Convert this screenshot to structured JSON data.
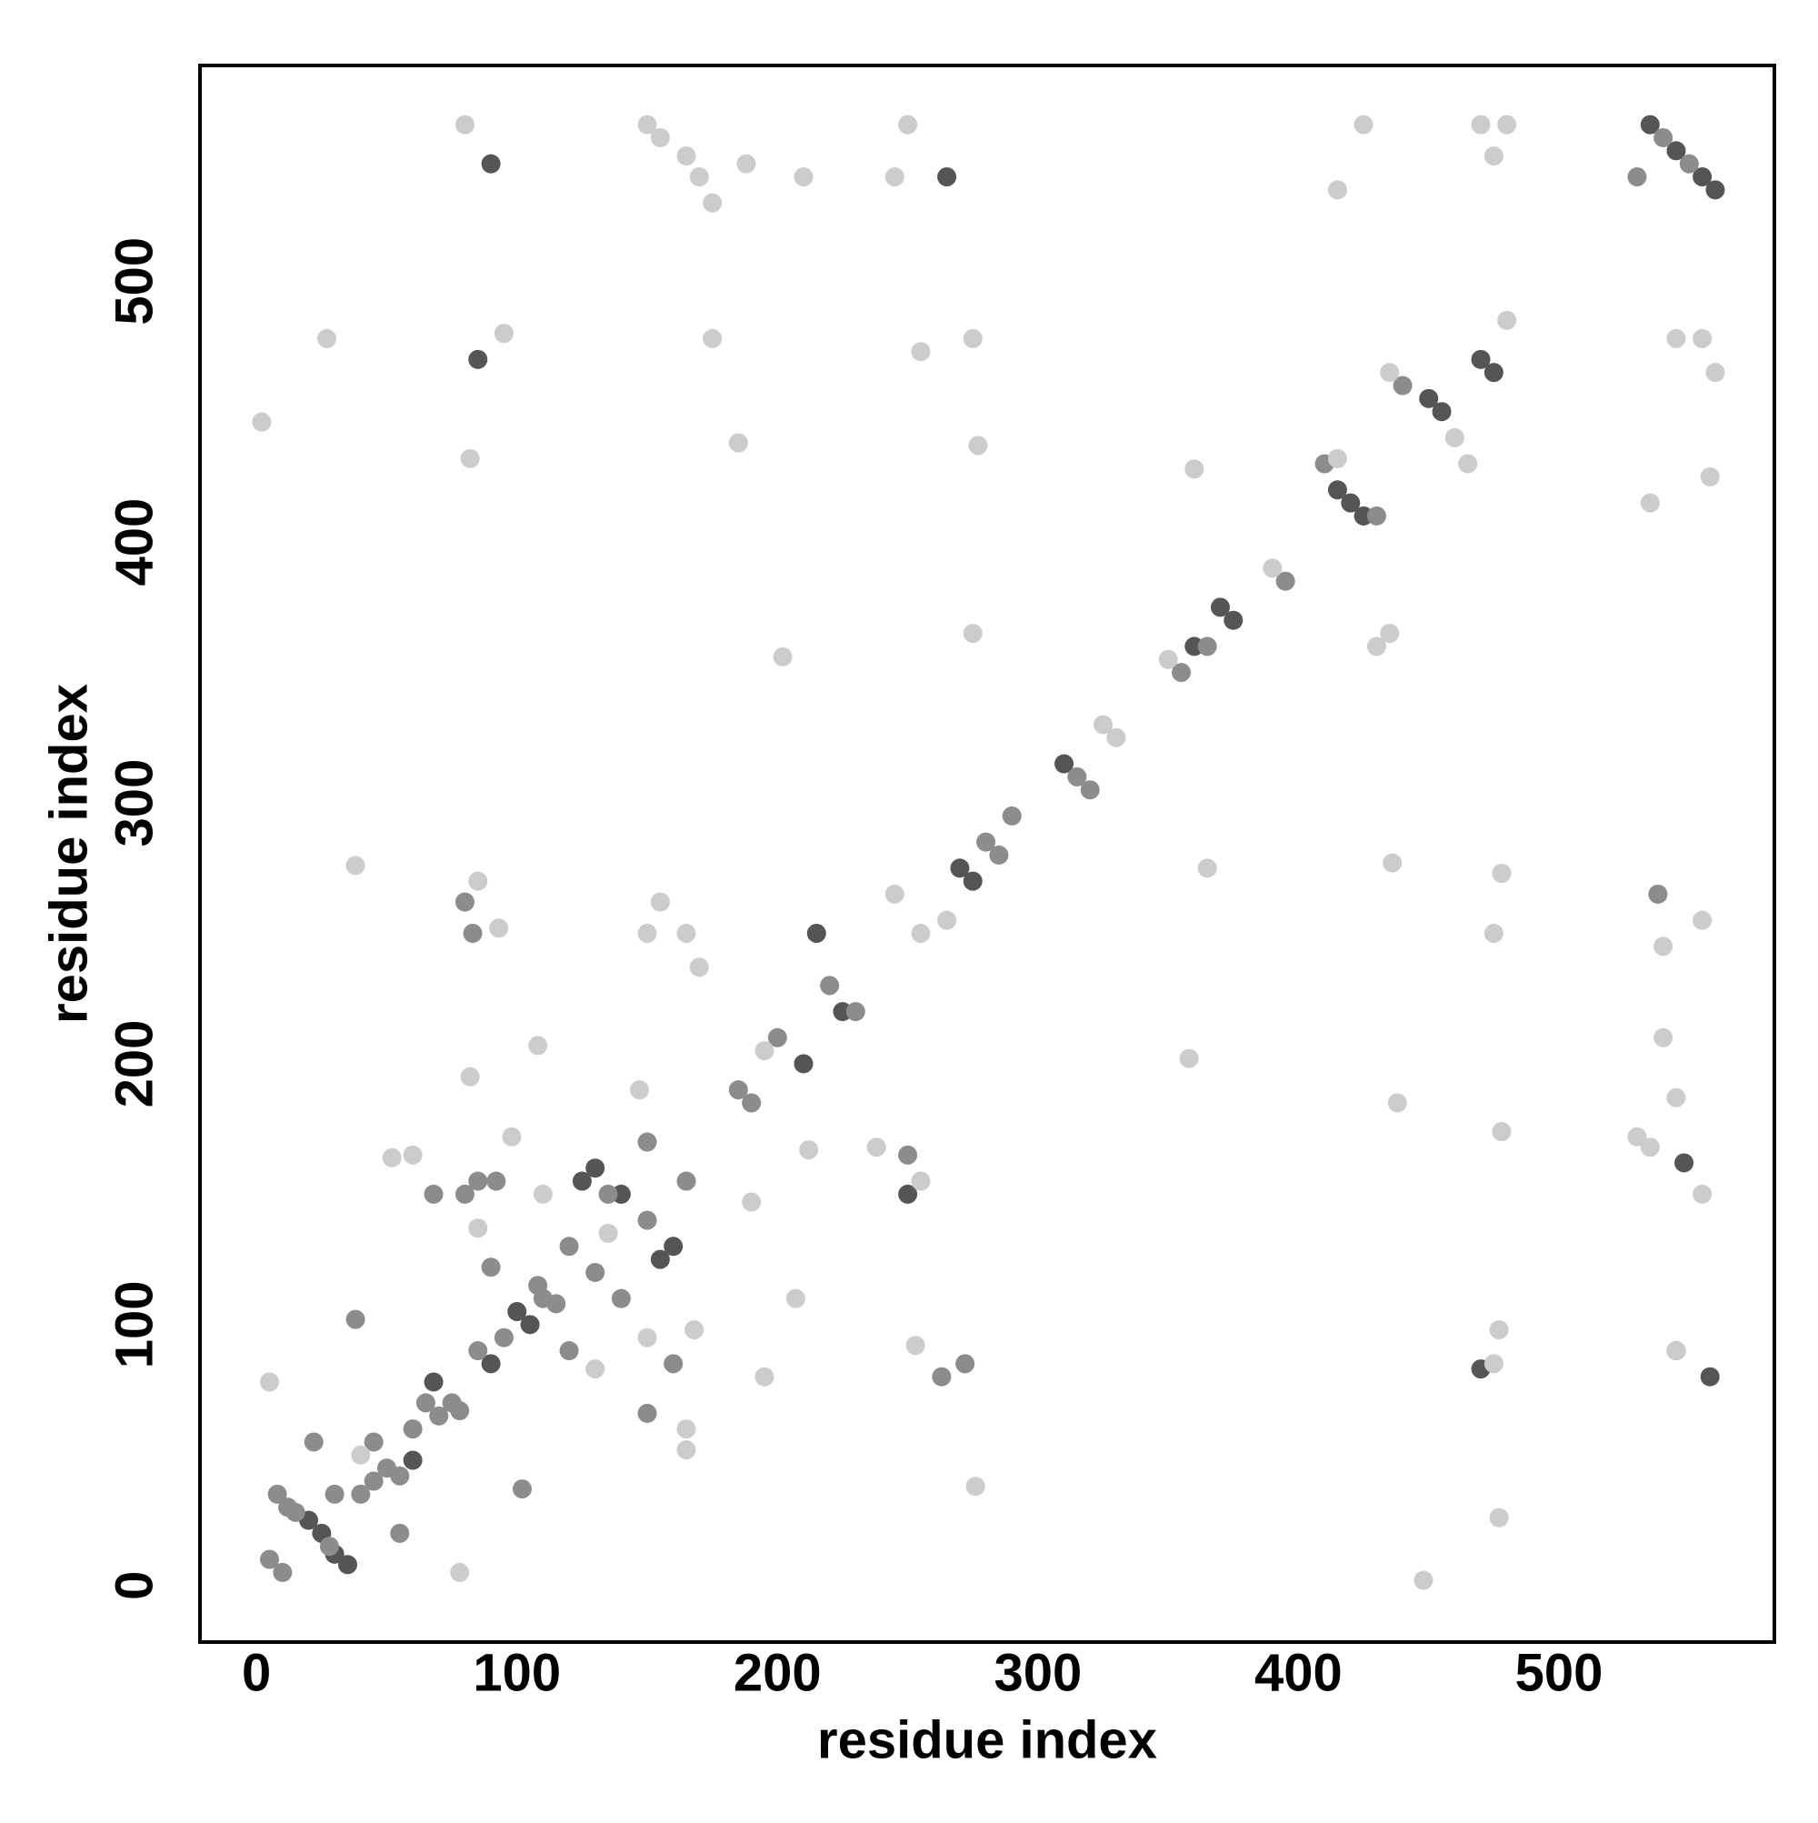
{
  "chart_data": {
    "type": "scatter",
    "xlabel": "residue index",
    "ylabel": "residue index",
    "xlim": [
      -21,
      582
    ],
    "ylim": [
      -21,
      582
    ],
    "xticks": [
      0,
      100,
      200,
      300,
      400,
      500
    ],
    "yticks": [
      0,
      100,
      200,
      300,
      400,
      500
    ],
    "grid": false,
    "series": [
      {
        "color": "#555555",
        "x": [
          20,
          25,
          30,
          35,
          60,
          68,
          90,
          100,
          105,
          125,
          130,
          140,
          155,
          160,
          210,
          215,
          225,
          270,
          275,
          310,
          360,
          370,
          375,
          415,
          420,
          425,
          450,
          455,
          470,
          475,
          535,
          545,
          555,
          560,
          85,
          90,
          265,
          470,
          545,
          548,
          558,
          250
        ],
        "values": [
          25,
          20,
          12,
          8,
          48,
          78,
          85,
          105,
          100,
          155,
          160,
          150,
          125,
          130,
          200,
          250,
          220,
          275,
          270,
          315,
          360,
          375,
          370,
          420,
          415,
          410,
          455,
          450,
          470,
          465,
          560,
          550,
          540,
          535,
          470,
          545,
          540,
          83,
          90,
          162,
          80,
          150
        ]
      },
      {
        "color": "#8c8c8c",
        "x": [
          5,
          10,
          8,
          12,
          15,
          28,
          30,
          40,
          45,
          50,
          55,
          45,
          60,
          65,
          70,
          75,
          78,
          85,
          95,
          110,
          115,
          108,
          120,
          130,
          135,
          150,
          150,
          165,
          185,
          190,
          200,
          220,
          230,
          280,
          285,
          290,
          315,
          320,
          355,
          365,
          395,
          410,
          430,
          440,
          540,
          550,
          38,
          80,
          83,
          150,
          160,
          250,
          263,
          272,
          22,
          55,
          102,
          68,
          80,
          85,
          92,
          90,
          120,
          140,
          538,
          530
        ],
        "values": [
          10,
          5,
          35,
          30,
          28,
          15,
          35,
          35,
          40,
          45,
          42,
          55,
          60,
          70,
          65,
          70,
          67,
          90,
          95,
          110,
          108,
          115,
          130,
          120,
          150,
          140,
          170,
          155,
          190,
          185,
          210,
          230,
          220,
          285,
          280,
          295,
          310,
          305,
          350,
          360,
          385,
          430,
          410,
          460,
          555,
          545,
          102,
          262,
          250,
          66,
          85,
          165,
          80,
          85,
          55,
          20,
          37,
          150,
          150,
          155,
          155,
          122,
          90,
          110,
          265,
          540
        ]
      },
      {
        "color": "#cccccc",
        "x": [
          40,
          195,
          245,
          255,
          265,
          325,
          330,
          350,
          390,
          435,
          460,
          465,
          480,
          80,
          95,
          82,
          2,
          27,
          150,
          155,
          165,
          170,
          175,
          188,
          210,
          250,
          245,
          255,
          275,
          175,
          185,
          277,
          415,
          425,
          470,
          480,
          475,
          415,
          360,
          535,
          555,
          560,
          558,
          545,
          430,
          435,
          275,
          202,
          38,
          85,
          93,
          150,
          155,
          165,
          170,
          255,
          253,
          195,
          207,
          168,
          150,
          165,
          165,
          5,
          78,
          276,
          448,
          477,
          477,
          475,
          545,
          530,
          535,
          555,
          545,
          540,
          540,
          555,
          475,
          478,
          436,
          438,
          478,
          358,
          212,
          238,
          190,
          82,
          98,
          108,
          147,
          52,
          60,
          85,
          110,
          130,
          135,
          365
        ],
        "values": [
          50,
          205,
          265,
          250,
          255,
          330,
          325,
          355,
          390,
          465,
          440,
          430,
          485,
          560,
          480,
          432,
          446,
          478,
          560,
          555,
          548,
          540,
          530,
          545,
          540,
          560,
          540,
          473,
          478,
          478,
          438,
          437,
          535,
          560,
          560,
          560,
          548,
          432,
          428,
          415,
          478,
          465,
          425,
          478,
          360,
          365,
          365,
          356,
          276,
          270,
          252,
          250,
          262,
          250,
          237,
          155,
          92,
          80,
          110,
          98,
          95,
          60,
          52,
          78,
          5,
          38,
          2,
          26,
          98,
          85,
          90,
          172,
          168,
          150,
          187,
          210,
          245,
          255,
          250,
          273,
          277,
          185,
          174,
          202,
          167,
          168,
          147,
          195,
          172,
          207,
          190,
          164,
          165,
          137,
          150,
          83,
          135,
          275
        ]
      }
    ]
  }
}
